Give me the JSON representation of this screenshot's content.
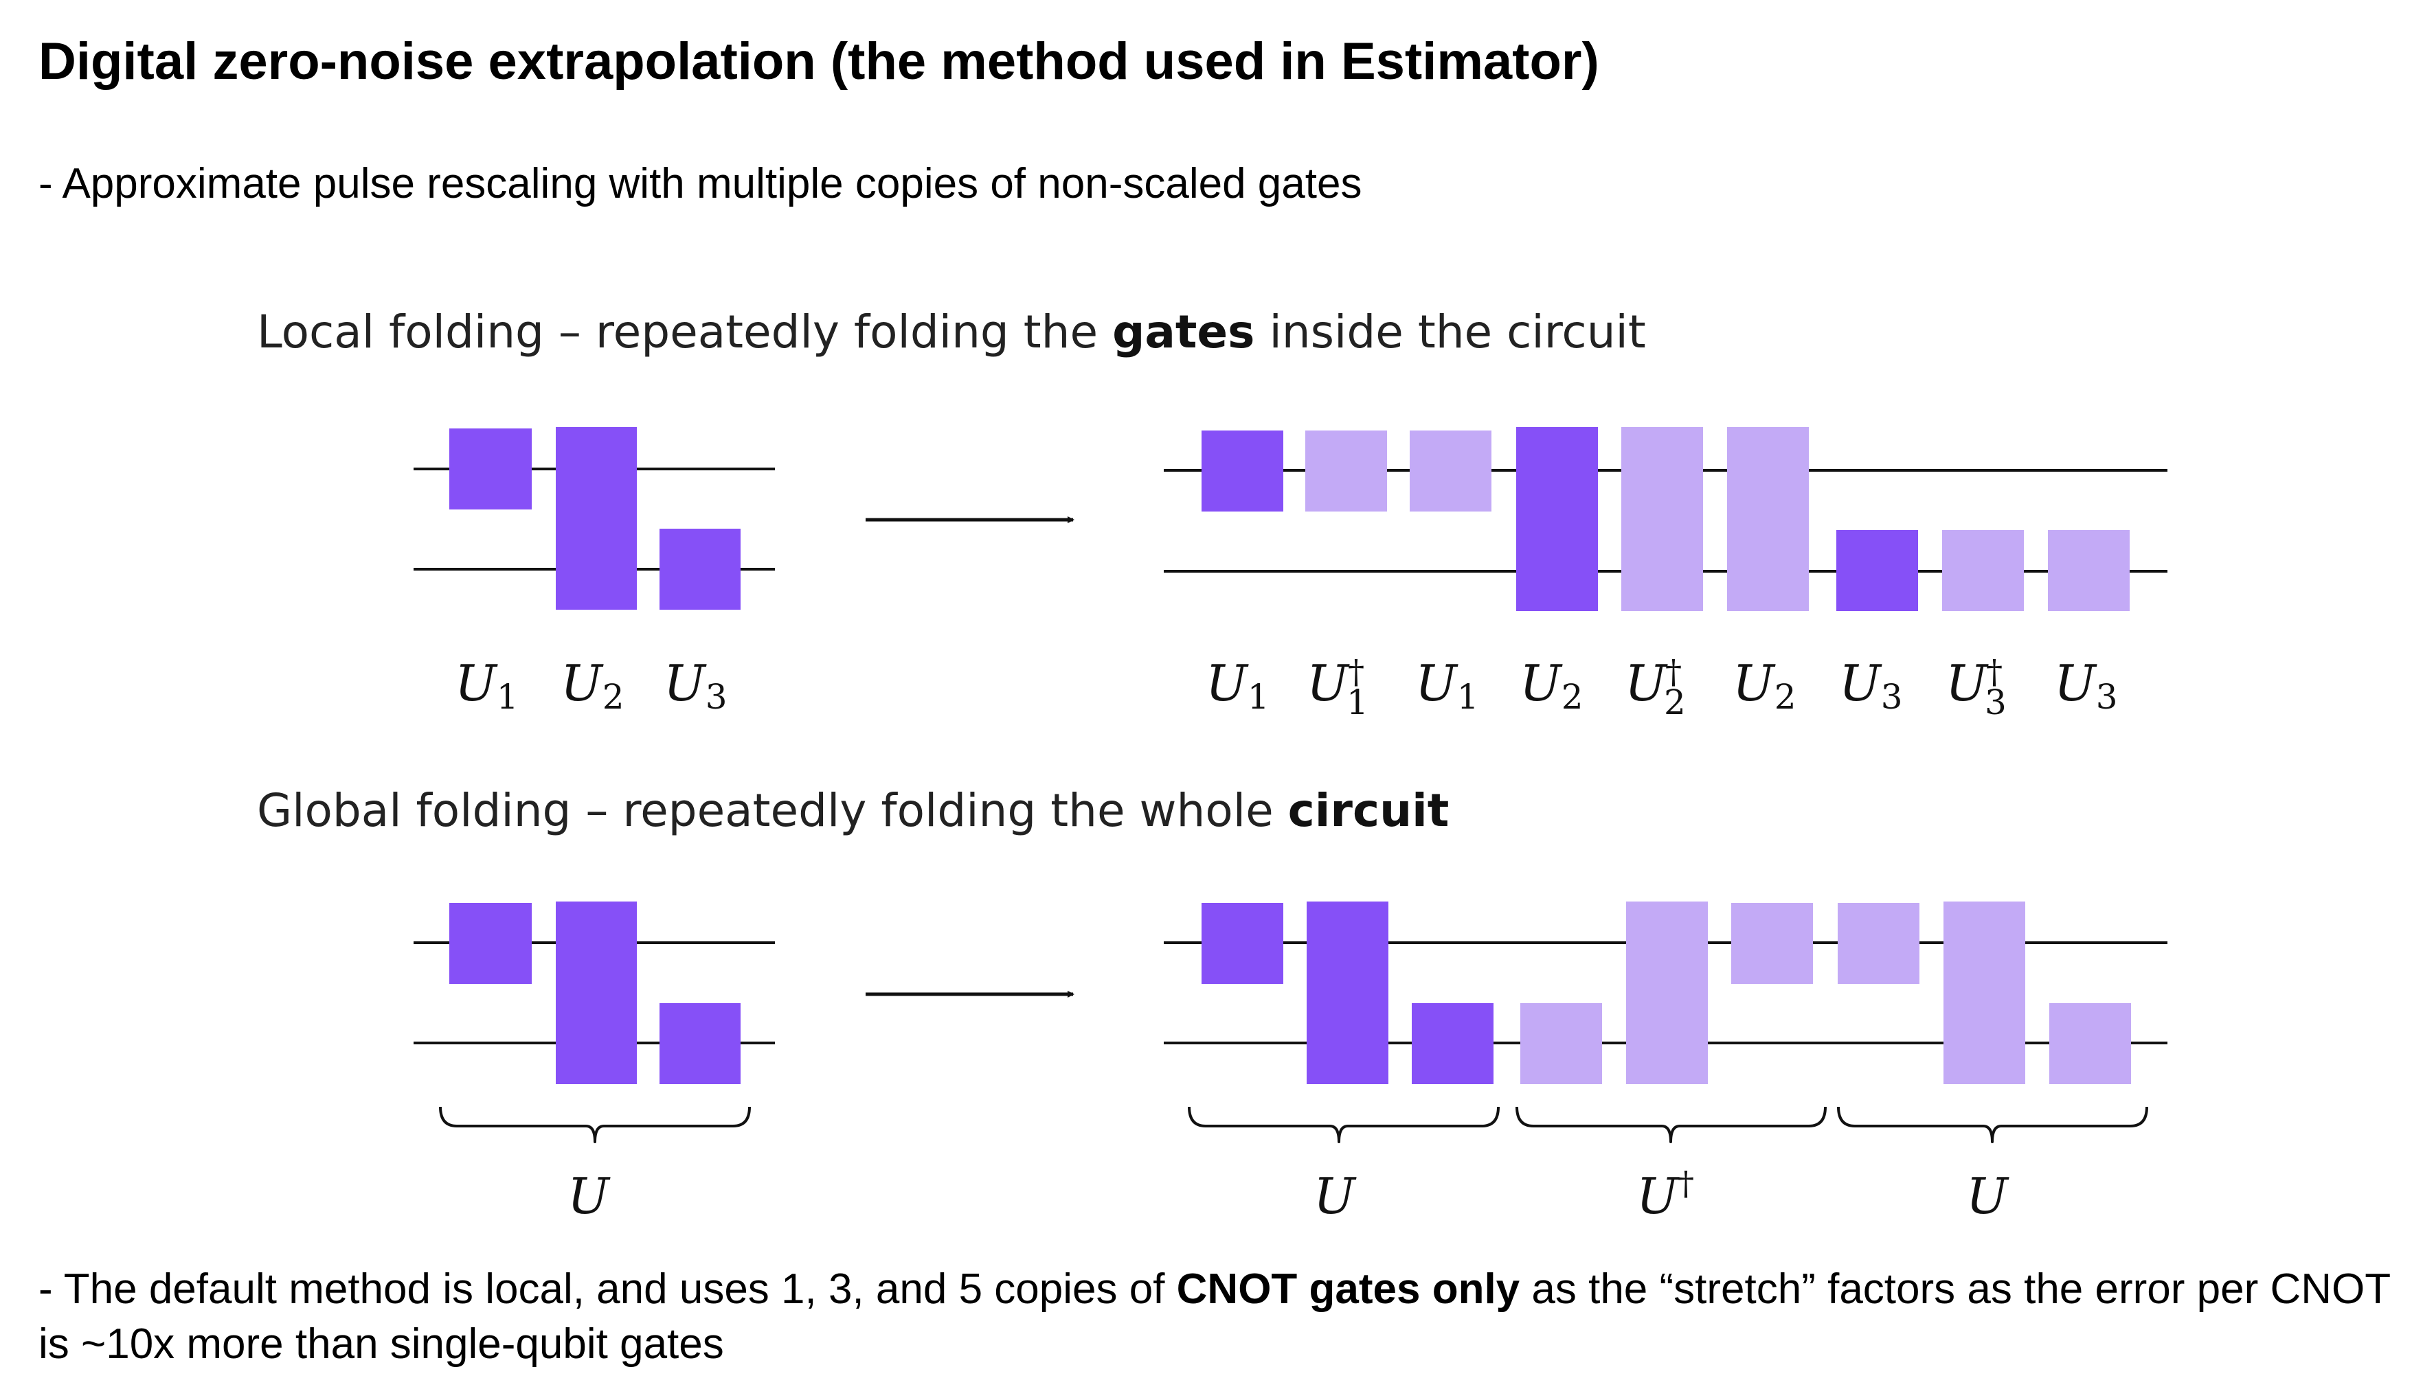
{
  "title": "Digital zero-noise extrapolation (the method used in Estimator)",
  "bullets": {
    "intro": "- Approximate pulse rescaling with multiple copies of non-scaled gates",
    "footer_pre": "- The default method is local, and uses 1, 3, and 5 copies of ",
    "footer_bold": "CNOT gates only",
    "footer_post": " as the “stretch” factors as the error per CNOT is ~10x more than single-qubit gates"
  },
  "local": {
    "heading_pre": "Local folding – repeatedly folding the ",
    "heading_bold": "gates",
    "heading_post": " inside the circuit"
  },
  "global": {
    "heading_pre": "Global folding – repeatedly folding the whole ",
    "heading_bold": "circuit"
  },
  "labels": {
    "U": "U",
    "one": "1",
    "two": "2",
    "three": "3",
    "dagger": "†"
  },
  "colors": {
    "gate_dark": "#8650f7",
    "gate_light": "#c3aaf6",
    "wire": "#111111"
  }
}
